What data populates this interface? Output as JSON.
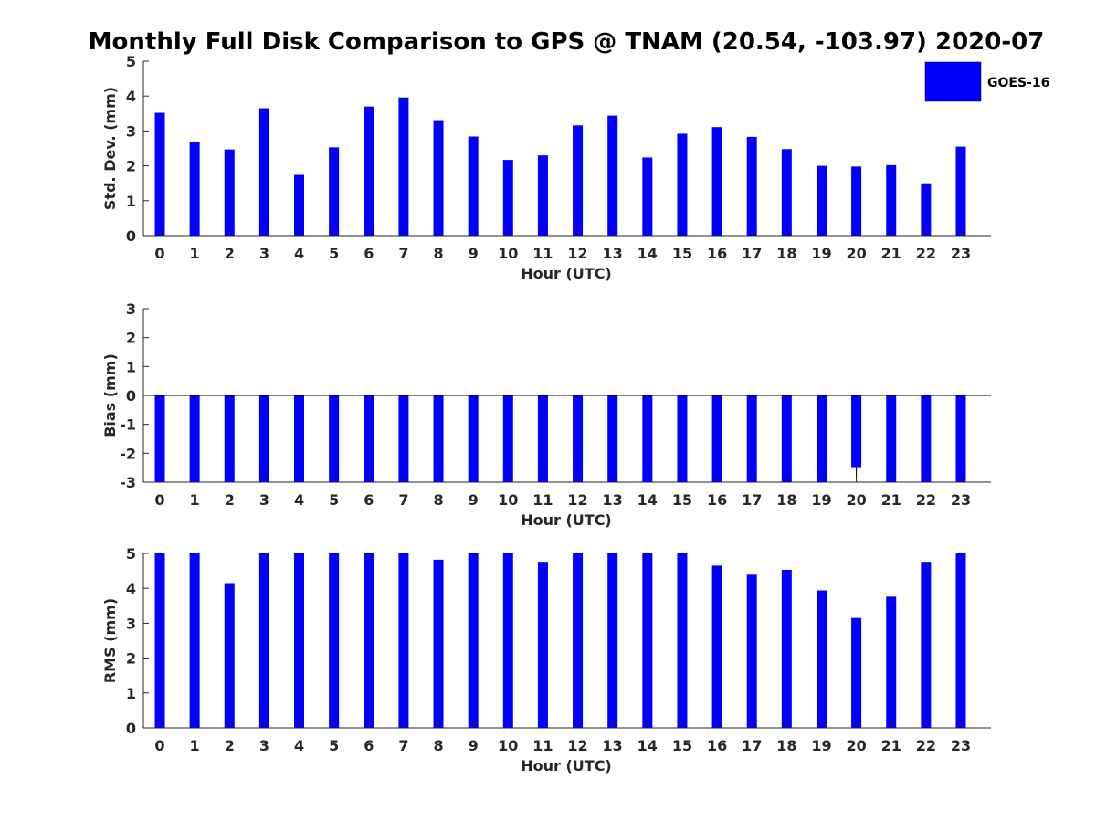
{
  "title": "Monthly Full Disk Comparison to GPS @ TNAM (20.54, -103.97) 2020-07",
  "legend": {
    "label": "GOES-16",
    "color": "#0000ff"
  },
  "chart_data": [
    {
      "type": "bar",
      "ylabel": "Std. Dev. (mm)",
      "xlabel": "Hour (UTC)",
      "ylim": [
        0,
        5
      ],
      "yticks": [
        0,
        1,
        2,
        3,
        4,
        5
      ],
      "categories": [
        "0",
        "1",
        "2",
        "3",
        "4",
        "5",
        "6",
        "7",
        "8",
        "9",
        "10",
        "11",
        "12",
        "13",
        "14",
        "15",
        "16",
        "17",
        "18",
        "19",
        "20",
        "21",
        "22",
        "23"
      ],
      "series": [
        {
          "name": "GOES-16",
          "color": "#0000ff",
          "values": [
            3.52,
            2.68,
            2.47,
            3.65,
            1.74,
            2.53,
            3.7,
            3.96,
            3.31,
            2.84,
            2.17,
            2.3,
            3.16,
            3.44,
            2.24,
            2.92,
            3.11,
            2.83,
            2.48,
            2.0,
            1.98,
            2.02,
            1.5,
            2.55
          ]
        }
      ],
      "legend_position": "top-right"
    },
    {
      "type": "bar",
      "ylabel": "Bias (mm)",
      "xlabel": "Hour (UTC)",
      "ylim": [
        -3,
        3
      ],
      "yticks": [
        -3,
        -2,
        -1,
        0,
        1,
        2,
        3
      ],
      "categories": [
        "0",
        "1",
        "2",
        "3",
        "4",
        "5",
        "6",
        "7",
        "8",
        "9",
        "10",
        "11",
        "12",
        "13",
        "14",
        "15",
        "16",
        "17",
        "18",
        "19",
        "20",
        "21",
        "22",
        "23"
      ],
      "series": [
        {
          "name": "GOES-16",
          "color": "#0000ff",
          "values": [
            -3,
            -3,
            -3,
            -3,
            -3,
            -3,
            -3,
            -3,
            -3,
            -3,
            -3,
            -3,
            -3,
            -3,
            -3,
            -3,
            -3,
            -3,
            -3,
            -3,
            -2.48,
            -3,
            -3,
            -3
          ]
        }
      ],
      "errorbars": [
        {
          "index": 20,
          "low": -2.9,
          "high": -2.48
        }
      ]
    },
    {
      "type": "bar",
      "ylabel": "RMS (mm)",
      "xlabel": "Hour (UTC)",
      "ylim": [
        0,
        5
      ],
      "yticks": [
        0,
        1,
        2,
        3,
        4,
        5
      ],
      "categories": [
        "0",
        "1",
        "2",
        "3",
        "4",
        "5",
        "6",
        "7",
        "8",
        "9",
        "10",
        "11",
        "12",
        "13",
        "14",
        "15",
        "16",
        "17",
        "18",
        "19",
        "20",
        "21",
        "22",
        "23"
      ],
      "series": [
        {
          "name": "GOES-16",
          "color": "#0000ff",
          "values": [
            5,
            5,
            4.15,
            5,
            5,
            5,
            5,
            5,
            4.82,
            5,
            5,
            4.76,
            5,
            5,
            5,
            5,
            4.65,
            4.39,
            4.53,
            3.94,
            3.15,
            3.76,
            4.76,
            5
          ]
        }
      ]
    }
  ]
}
